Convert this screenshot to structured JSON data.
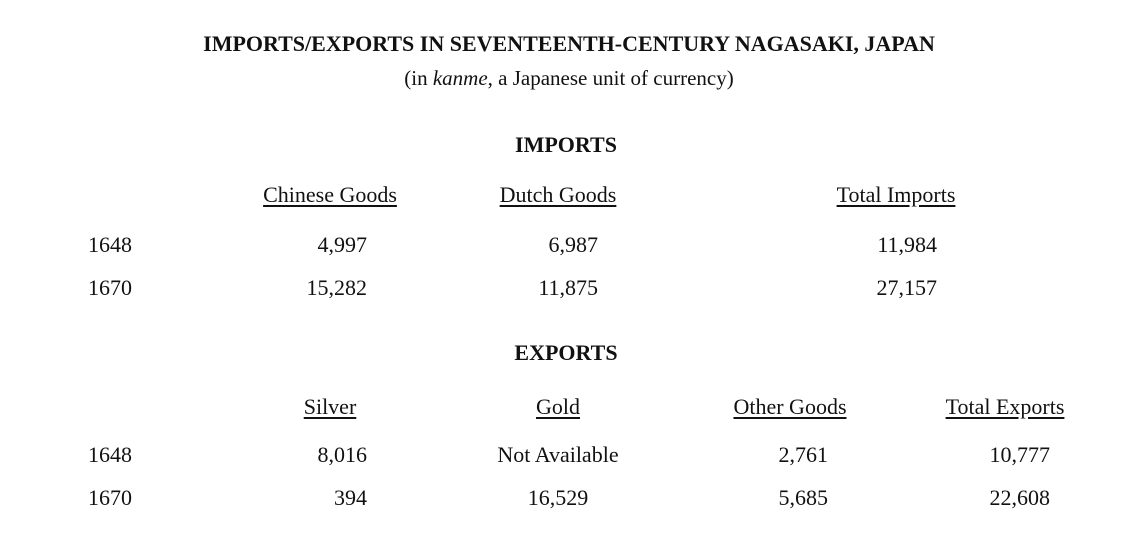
{
  "header": {
    "title": "IMPORTS/EXPORTS IN SEVENTEENTH-CENTURY NAGASAKI, JAPAN",
    "subtitle": {
      "before": "(in ",
      "emphasis": "kanme",
      "after": ", a Japanese unit of currency)"
    }
  },
  "imports": {
    "title": "IMPORTS",
    "headers": [
      "Chinese Goods",
      "Dutch Goods",
      "Total Imports"
    ],
    "rows": [
      [
        "1648",
        "4,997",
        "6,987",
        "11,984"
      ],
      [
        "1670",
        "15,282",
        "11,875",
        "27,157"
      ]
    ]
  },
  "exports": {
    "title": "EXPORTS",
    "headers": [
      "Silver",
      "Gold",
      "Other Goods",
      "Total Exports"
    ],
    "rows": [
      [
        "1648",
        "8,016",
        "Not Available",
        "2,761",
        "10,777"
      ],
      [
        "1670",
        "394",
        "16,529",
        "5,685",
        "22,608"
      ]
    ]
  }
}
